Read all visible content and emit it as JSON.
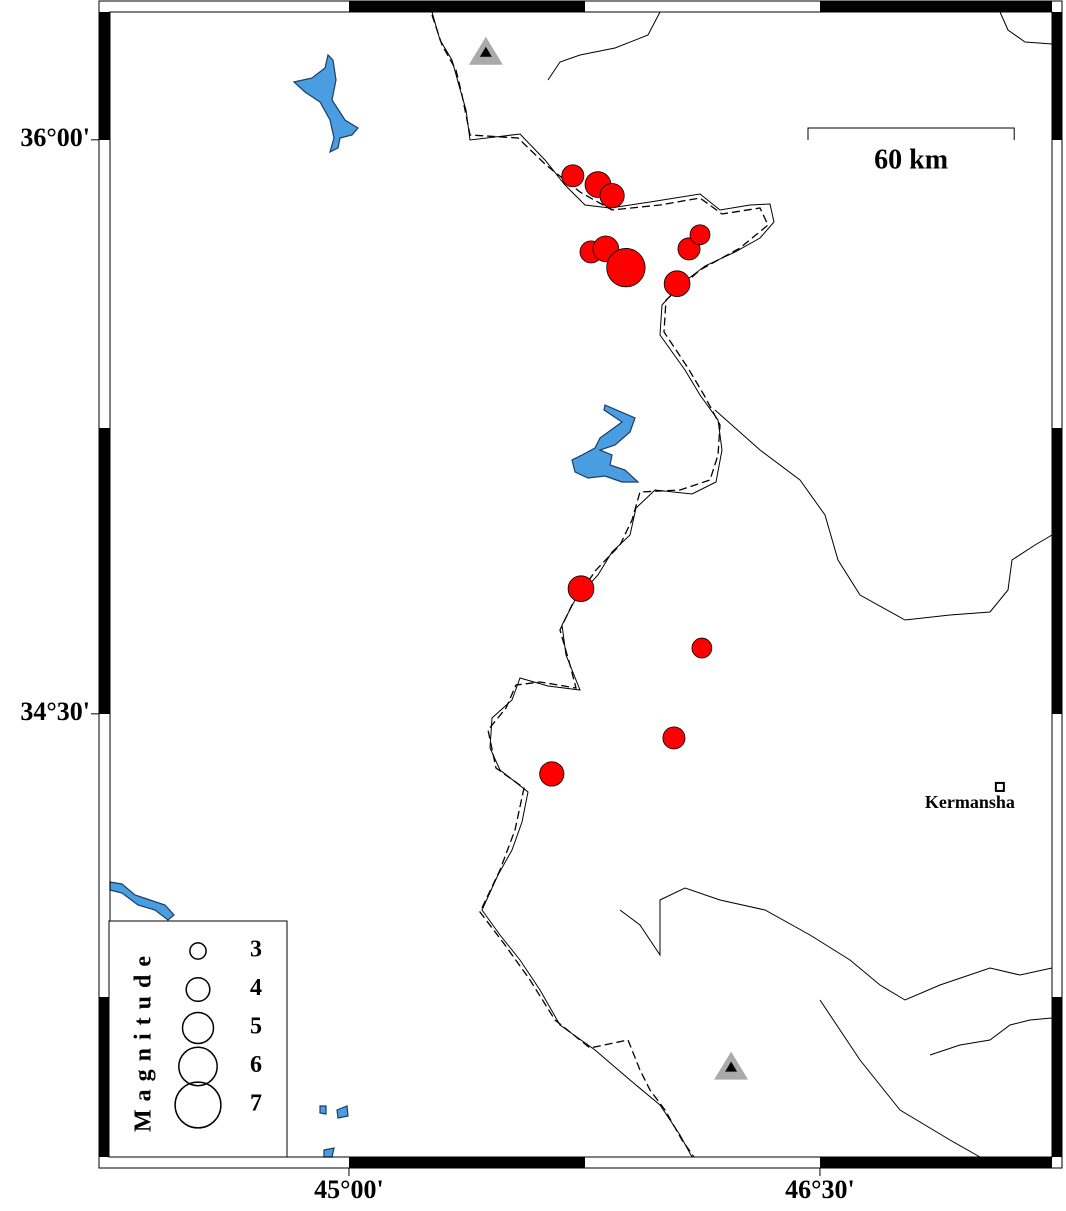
{
  "map": {
    "xlim": [
      44.239,
      47.239
    ],
    "ylim": [
      33.342,
      36.334
    ],
    "xticks": [
      {
        "value": 45,
        "label": "45°00'"
      },
      {
        "value": 46.5,
        "label": "46°30'"
      }
    ],
    "yticks": [
      {
        "value": 36,
        "label": "36°00'"
      },
      {
        "value": 34.5,
        "label": "34°30'"
      }
    ],
    "events": {
      "color": "#ff0000",
      "lon": [
        45.713,
        45.793,
        45.838,
        45.771,
        45.818,
        45.882,
        46.083,
        46.118,
        46.045,
        45.739,
        46.124,
        46.035,
        45.646
      ],
      "lat": [
        35.906,
        35.883,
        35.854,
        35.707,
        35.715,
        35.666,
        35.715,
        35.752,
        35.624,
        34.827,
        34.672,
        34.437,
        34.343
      ],
      "magnitude": [
        3.8,
        4.3,
        4.1,
        3.8,
        4.3,
        6.0,
        3.8,
        3.5,
        4.3,
        4.3,
        3.5,
        3.8,
        4.1
      ]
    },
    "stations": {
      "lon": [
        45.436,
        46.217
      ],
      "lat": [
        36.23,
        33.578
      ]
    },
    "city": {
      "name": "Kermansha",
      "lon": 47.073,
      "lat": 34.309
    },
    "scale_bar": {
      "length": {
        "value": 60,
        "label": "60 km"
      }
    },
    "legend": {
      "title": "Magnitude",
      "sizes": [
        3,
        4,
        5,
        6,
        7
      ]
    }
  }
}
